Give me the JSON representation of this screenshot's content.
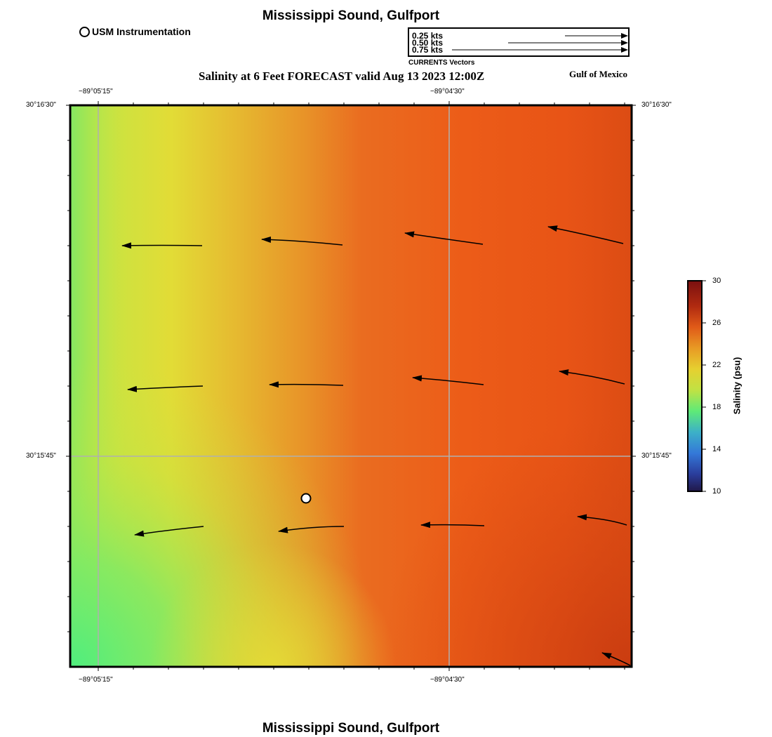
{
  "title": "Mississippi Sound, Gulfport",
  "footer_title": "Mississippi Sound, Gulfport",
  "subtitle": "Salinity at 6 Feet FORECAST valid Aug 13 2023 12:00Z",
  "region_label": "Gulf of Mexico",
  "station_legend": {
    "label": "USM Instrumentation"
  },
  "vector_legend": {
    "caption": "CURRENTS Vectors",
    "entries": [
      {
        "label": "0.25 kts",
        "speed": 0.25
      },
      {
        "label": "0.50 kts",
        "speed": 0.5
      },
      {
        "label": "0.75 kts",
        "speed": 0.75
      }
    ]
  },
  "axes": {
    "lon_labels": [
      "−89°05'15\"",
      "−89°04'30\""
    ],
    "lat_labels": [
      "30°16'30\"",
      "30°15'45\""
    ]
  },
  "colorbar": {
    "title": "Salinity (psu)",
    "min": 10,
    "max": 30,
    "ticks": [
      "30",
      "26",
      "22",
      "18",
      "14",
      "10"
    ],
    "colors": [
      "#7a1010",
      "#c03a10",
      "#e86a18",
      "#e8c028",
      "#c8e040",
      "#58e878",
      "#40a8d8",
      "#3060d0",
      "#201850"
    ]
  },
  "salinity_field": {
    "colors": [
      "#52ec7c",
      "#b8e648",
      "#e6dc36",
      "#e6a02e",
      "#ea6c20",
      "#ec5a16",
      "#d84a12",
      "#c83c10"
    ]
  },
  "current_vectors_kts_note": "",
  "station": {
    "name": "USM Instrumentation"
  }
}
